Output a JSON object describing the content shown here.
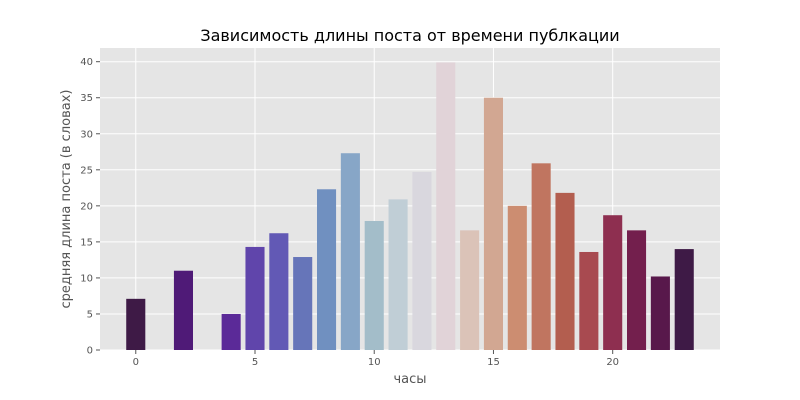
{
  "chart_data": {
    "type": "bar",
    "title": "Зависимость длины поста от времени публкации",
    "xlabel": "часы",
    "ylabel": "средняя длина поста (в словах)",
    "x": [
      0,
      2,
      4,
      5,
      6,
      7,
      8,
      9,
      10,
      11,
      12,
      13,
      14,
      15,
      16,
      17,
      18,
      19,
      20,
      21,
      22,
      23
    ],
    "values": [
      7.1,
      11.0,
      5.0,
      14.3,
      16.2,
      12.9,
      22.3,
      27.3,
      17.9,
      20.9,
      24.7,
      39.9,
      16.6,
      35.0,
      20.0,
      25.9,
      21.8,
      13.6,
      18.7,
      16.6,
      10.2,
      14.0
    ],
    "colors": [
      "#3e1a46",
      "#4f1a77",
      "#5b2a98",
      "#6045ab",
      "#6259b5",
      "#6675b9",
      "#7090c0",
      "#87a6c7",
      "#a3bdc9",
      "#c0ced6",
      "#d9d7de",
      "#e1d3d8",
      "#dbc3b8",
      "#d2a792",
      "#cc8d71",
      "#c07560",
      "#b35e4f",
      "#a84a50",
      "#8e2f50",
      "#731f4d",
      "#58184b",
      "#3e1a46"
    ],
    "xticks": [
      0,
      5,
      10,
      15,
      20
    ],
    "yticks": [
      0,
      5,
      10,
      15,
      20,
      25,
      30,
      35,
      40
    ],
    "xlim": [
      -1.5,
      24.5
    ],
    "ylim": [
      0,
      41.9
    ],
    "grid": true,
    "style": {
      "plot_background": "#e5e5e5",
      "grid_color": "#ffffff",
      "tick_color": "#555555"
    }
  }
}
